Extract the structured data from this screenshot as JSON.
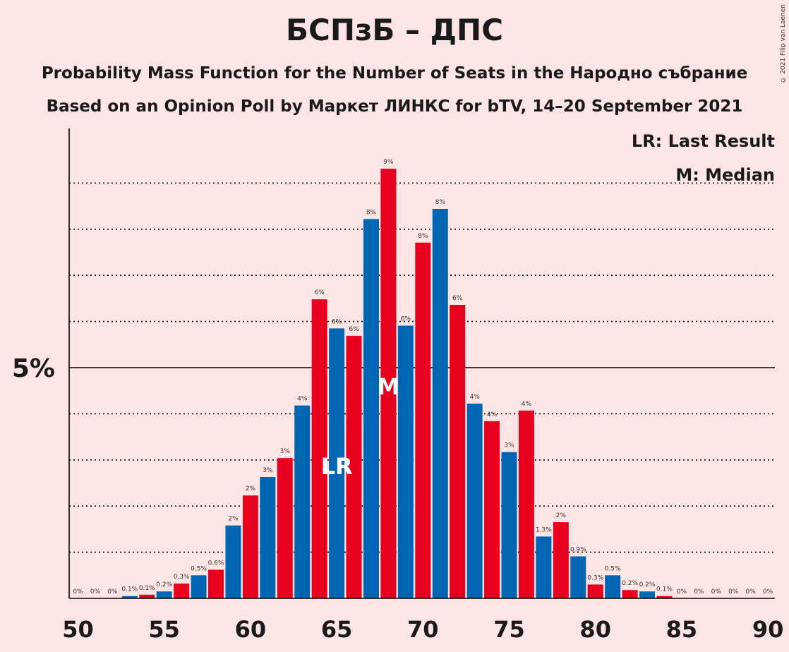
{
  "title": "БСПзБ – ДПС",
  "subtitle": "Probability Mass Function for the Number of Seats in the Народно събрание",
  "subtitle2": "Based on an Opinion Poll by Маркет ЛИНКС for bTV, 14–20 September 2021",
  "copyright": "© 2021 Filip van Laenen",
  "legend": {
    "last_result": "LR: Last Result",
    "median": "M: Median"
  },
  "colors": {
    "background": "#FDE5E5",
    "blue": "#0065B3",
    "red": "#E8001F"
  },
  "chart_data": {
    "type": "bar",
    "x": [
      50,
      51,
      52,
      53,
      54,
      55,
      56,
      57,
      58,
      59,
      60,
      61,
      62,
      63,
      64,
      65,
      66,
      67,
      68,
      69,
      70,
      71,
      72,
      73,
      74,
      75,
      76,
      77,
      78,
      79,
      80,
      81,
      82,
      83,
      84,
      85,
      86,
      87,
      88,
      89,
      90
    ],
    "values": [
      0,
      0,
      0,
      0.05,
      0.08,
      0.15,
      0.32,
      0.5,
      0.62,
      1.58,
      2.23,
      2.63,
      3.04,
      4.18,
      6.48,
      5.85,
      5.69,
      8.22,
      9.31,
      5.91,
      7.71,
      8.44,
      6.36,
      4.22,
      3.84,
      3.17,
      4.07,
      1.34,
      1.65,
      0.91,
      0.3,
      0.5,
      0.18,
      0.15,
      0.05,
      0,
      0,
      0,
      0,
      0,
      0
    ],
    "labels": [
      "0%",
      "0%",
      "0%",
      "0.1%",
      "0.1%",
      "0.2%",
      "0.3%",
      "0.5%",
      "0.6%",
      "2%",
      "2%",
      "3%",
      "3%",
      "4%",
      "6%",
      "6%",
      "6%",
      "8%",
      "9%",
      "6%",
      "8%",
      "8%",
      "6%",
      "4%",
      "4%",
      "3%",
      "4%",
      "1.3%",
      "2%",
      "0.9%",
      "0.3%",
      "0.5%",
      "0.2%",
      "0.2%",
      "0.1%",
      "0%",
      "0%",
      "0%",
      "0%",
      "0%",
      "0%"
    ],
    "xticks": [
      50,
      55,
      60,
      65,
      70,
      75,
      80,
      85,
      90
    ],
    "ytick_label": "5%",
    "ytick_value": 5,
    "ylim": [
      0,
      10.2
    ],
    "last_result": 65,
    "last_result_label": "LR",
    "median": 68,
    "median_label": "M"
  }
}
